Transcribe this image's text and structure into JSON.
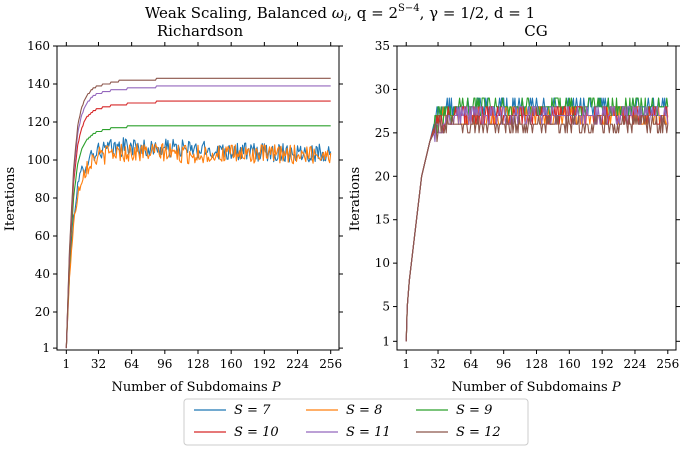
{
  "figure_title": "Weak Scaling, Balanced ωᵢ, q = 2^(S−4), γ = 1/2, d = 1",
  "figure_title_parts": {
    "prefix": "Weak Scaling, Balanced ",
    "omega": "ω",
    "omega_sub": "i",
    "q_part": ", q = 2",
    "q_exp": "S−4",
    "rest": ", γ = 1/2, d = 1"
  },
  "legend": {
    "placement": "bottom-center",
    "entries": [
      {
        "label": "S = 7",
        "color": "#1f77b4"
      },
      {
        "label": "S = 8",
        "color": "#ff7f0e"
      },
      {
        "label": "S = 9",
        "color": "#2ca02c"
      },
      {
        "label": "S = 10",
        "color": "#d62728"
      },
      {
        "label": "S = 11",
        "color": "#9467bd"
      },
      {
        "label": "S = 12",
        "color": "#8c564b"
      }
    ]
  },
  "chart_data": [
    {
      "type": "line",
      "title": "Richardson",
      "xlabel": "Number of Subdomains P",
      "ylabel": "Iterations",
      "xlim": [
        -8,
        264
      ],
      "ylim": [
        0,
        160
      ],
      "xticks": [
        1,
        32,
        64,
        96,
        128,
        160,
        192,
        224,
        256
      ],
      "yticks": [
        1,
        20,
        40,
        60,
        80,
        100,
        120,
        140,
        160
      ],
      "ytick_labels": [
        "1",
        "20",
        "40",
        "60",
        "80",
        "100",
        "120",
        "140",
        "160"
      ],
      "series": [
        {
          "name": "S = 7",
          "color": "#1f77b4",
          "noisy": true,
          "x": [
            1,
            4,
            8,
            12,
            16,
            20,
            24,
            28,
            32,
            40,
            48,
            56,
            64,
            72,
            80,
            96,
            112,
            128,
            144,
            160,
            176,
            192,
            208,
            224,
            240,
            256
          ],
          "y": [
            1,
            40,
            70,
            86,
            94,
            99,
            102,
            104,
            105,
            106,
            106,
            107,
            107,
            106,
            106,
            106,
            106,
            105,
            105,
            105,
            104,
            104,
            104,
            104,
            104,
            104
          ]
        },
        {
          "name": "S = 8",
          "color": "#ff7f0e",
          "noisy": true,
          "x": [
            1,
            4,
            8,
            12,
            16,
            20,
            24,
            28,
            32,
            40,
            48,
            56,
            64,
            72,
            80,
            96,
            112,
            128,
            144,
            160,
            176,
            192,
            208,
            224,
            240,
            256
          ],
          "y": [
            1,
            38,
            66,
            82,
            91,
            96,
            99,
            101,
            102,
            103,
            104,
            104,
            104,
            104,
            104,
            104,
            103,
            103,
            103,
            103,
            103,
            103,
            103,
            103,
            103,
            103
          ]
        },
        {
          "name": "S = 9",
          "color": "#2ca02c",
          "noisy": false,
          "x": [
            1,
            4,
            8,
            12,
            16,
            20,
            24,
            28,
            32,
            40,
            48,
            56,
            64,
            80,
            96,
            128,
            160,
            192,
            224,
            256
          ],
          "y": [
            1,
            45,
            80,
            98,
            106,
            110,
            112,
            114,
            115,
            116,
            117,
            117,
            118,
            118,
            118,
            118,
            118,
            118,
            118,
            118
          ]
        },
        {
          "name": "S = 10",
          "color": "#d62728",
          "noisy": false,
          "x": [
            1,
            4,
            8,
            12,
            16,
            20,
            24,
            28,
            32,
            40,
            48,
            56,
            64,
            80,
            96,
            128,
            160,
            192,
            224,
            256
          ],
          "y": [
            1,
            48,
            88,
            108,
            117,
            122,
            124,
            126,
            127,
            128,
            129,
            129,
            130,
            130,
            131,
            131,
            131,
            131,
            131,
            131
          ]
        },
        {
          "name": "S = 11",
          "color": "#9467bd",
          "noisy": false,
          "x": [
            1,
            4,
            8,
            12,
            16,
            20,
            24,
            28,
            32,
            40,
            48,
            56,
            64,
            80,
            96,
            128,
            160,
            192,
            224,
            256
          ],
          "y": [
            1,
            50,
            92,
            114,
            124,
            129,
            132,
            134,
            135,
            136,
            137,
            137,
            138,
            138,
            139,
            139,
            139,
            139,
            139,
            139
          ]
        },
        {
          "name": "S = 12",
          "color": "#8c564b",
          "noisy": false,
          "x": [
            1,
            4,
            8,
            12,
            16,
            20,
            24,
            28,
            32,
            40,
            48,
            56,
            64,
            80,
            96,
            128,
            160,
            192,
            224,
            256
          ],
          "y": [
            1,
            52,
            95,
            118,
            128,
            133,
            136,
            138,
            139,
            140,
            141,
            142,
            142,
            142,
            143,
            143,
            143,
            143,
            143,
            143
          ]
        }
      ]
    },
    {
      "type": "line",
      "title": "CG",
      "xlabel": "Number of Subdomains P",
      "ylabel": "Iterations",
      "xlim": [
        -8,
        264
      ],
      "ylim": [
        0,
        35
      ],
      "xticks": [
        1,
        32,
        64,
        96,
        128,
        160,
        192,
        224,
        256
      ],
      "yticks": [
        1,
        5,
        10,
        15,
        20,
        25,
        30,
        35
      ],
      "ytick_labels": [
        "1",
        "5",
        "10",
        "15",
        "20",
        "25",
        "30",
        "35"
      ],
      "series": [
        {
          "name": "S = 7",
          "color": "#1f77b4",
          "noisy": true,
          "x": [
            1,
            2,
            4,
            8,
            12,
            16,
            20,
            24,
            28,
            32,
            40,
            48,
            64,
            96,
            128,
            160,
            192,
            224,
            256
          ],
          "y": [
            1,
            5,
            8,
            12,
            16,
            20,
            22,
            24,
            26,
            27,
            27.5,
            28,
            28,
            28,
            28,
            28,
            28,
            28,
            28
          ]
        },
        {
          "name": "S = 8",
          "color": "#ff7f0e",
          "noisy": true,
          "x": [
            1,
            2,
            4,
            8,
            12,
            16,
            20,
            24,
            28,
            32,
            40,
            48,
            64,
            96,
            128,
            160,
            192,
            224,
            256
          ],
          "y": [
            1,
            5,
            8,
            12,
            16,
            20,
            22,
            24,
            25.5,
            26.5,
            27,
            27,
            27,
            27,
            27,
            27,
            27,
            27,
            27
          ]
        },
        {
          "name": "S = 9",
          "color": "#2ca02c",
          "noisy": true,
          "x": [
            1,
            2,
            4,
            8,
            12,
            16,
            20,
            24,
            28,
            32,
            40,
            48,
            64,
            96,
            128,
            160,
            192,
            224,
            256
          ],
          "y": [
            1,
            5,
            8,
            12,
            16,
            20,
            22,
            24,
            25.5,
            26.5,
            27,
            27.5,
            27.5,
            27.5,
            27.5,
            27.5,
            27.5,
            27.5,
            27.5
          ]
        },
        {
          "name": "S = 10",
          "color": "#d62728",
          "noisy": true,
          "x": [
            1,
            2,
            4,
            8,
            12,
            16,
            20,
            24,
            28,
            32,
            40,
            48,
            64,
            96,
            128,
            160,
            192,
            224,
            256
          ],
          "y": [
            1,
            5,
            8,
            12,
            16,
            20,
            22,
            24,
            25.5,
            26,
            26.5,
            26.5,
            26.5,
            26.5,
            26.5,
            26.5,
            26.5,
            26.5,
            26.5
          ]
        },
        {
          "name": "S = 11",
          "color": "#9467bd",
          "noisy": true,
          "x": [
            1,
            2,
            4,
            8,
            12,
            16,
            20,
            24,
            28,
            32,
            40,
            48,
            64,
            96,
            128,
            160,
            192,
            224,
            256
          ],
          "y": [
            1,
            5,
            8,
            12,
            16,
            20,
            22,
            24,
            25,
            26,
            26,
            26.5,
            26.5,
            26.5,
            26.5,
            26.5,
            26.5,
            26.5,
            26.5
          ]
        },
        {
          "name": "S = 12",
          "color": "#8c564b",
          "noisy": true,
          "x": [
            1,
            2,
            4,
            8,
            12,
            16,
            20,
            24,
            28,
            32,
            40,
            48,
            64,
            96,
            128,
            160,
            192,
            224,
            256
          ],
          "y": [
            1,
            5,
            8,
            12,
            16,
            20,
            22,
            24,
            25,
            25.5,
            26,
            26,
            26,
            26,
            26,
            26,
            26,
            26,
            26
          ]
        }
      ]
    }
  ]
}
